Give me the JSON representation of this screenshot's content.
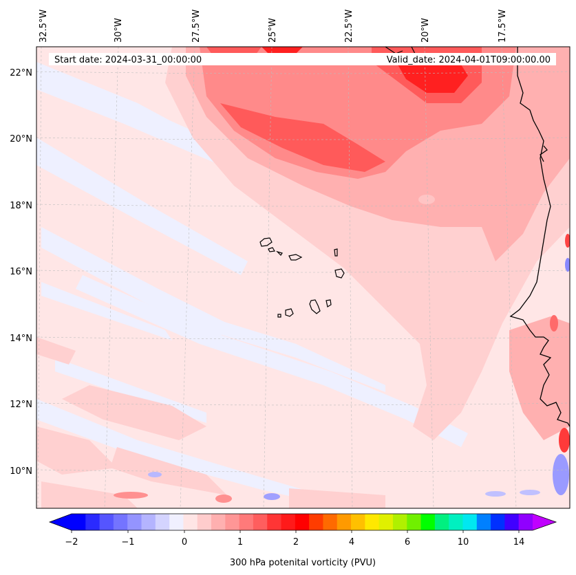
{
  "map": {
    "region": "Eastern North Atlantic / Cape Verde",
    "field": "300 hPa potential vorticity"
  },
  "annotations": {
    "start_date": "Start date: 2024-03-31_00:00:00",
    "valid_date": "Valid_date: 2024-04-01T09:00:00.00"
  },
  "axes": {
    "longitude_labels": [
      "32.5°W",
      "30°W",
      "27.5°W",
      "25°W",
      "22.5°W",
      "20°W",
      "17.5°W"
    ],
    "latitude_labels": [
      "22°N",
      "20°N",
      "18°N",
      "16°N",
      "14°N",
      "12°N",
      "10°N"
    ]
  },
  "colorbar": {
    "label": "300 hPa potenital vorticity (PVU)",
    "tick_labels": [
      "−2",
      "−1",
      "0",
      "1",
      "2",
      "4",
      "6",
      "10",
      "14"
    ],
    "colors": [
      "#0000ff",
      "#2a2aff",
      "#5555ff",
      "#7474ff",
      "#9494ff",
      "#b4b4ff",
      "#d4d4ff",
      "#f0f0ff",
      "#ffe5e5",
      "#ffcccc",
      "#ffb0b0",
      "#ff9696",
      "#ff7a7a",
      "#ff5e5e",
      "#ff3535",
      "#ff1a1a",
      "#ff0000",
      "#ff3c00",
      "#ff6a00",
      "#ff9a00",
      "#ffc000",
      "#ffe800",
      "#e0f000",
      "#b0f000",
      "#70f000",
      "#00ff00",
      "#00f080",
      "#00f0c0",
      "#00e8f0",
      "#0080ff",
      "#0030ff",
      "#4000ff",
      "#9000ff"
    ],
    "extend_low_color": "#0000ff",
    "extend_high_color": "#c000ff"
  },
  "chart_data": {
    "type": "heatmap",
    "title": "",
    "variable": "300 hPa potential vorticity",
    "units": "PVU",
    "lon_range": [
      -32.5,
      -15
    ],
    "lat_range": [
      8.8,
      22.8
    ],
    "levels": [
      -2,
      -1,
      0,
      1,
      2,
      4,
      6,
      10,
      14
    ]
  }
}
